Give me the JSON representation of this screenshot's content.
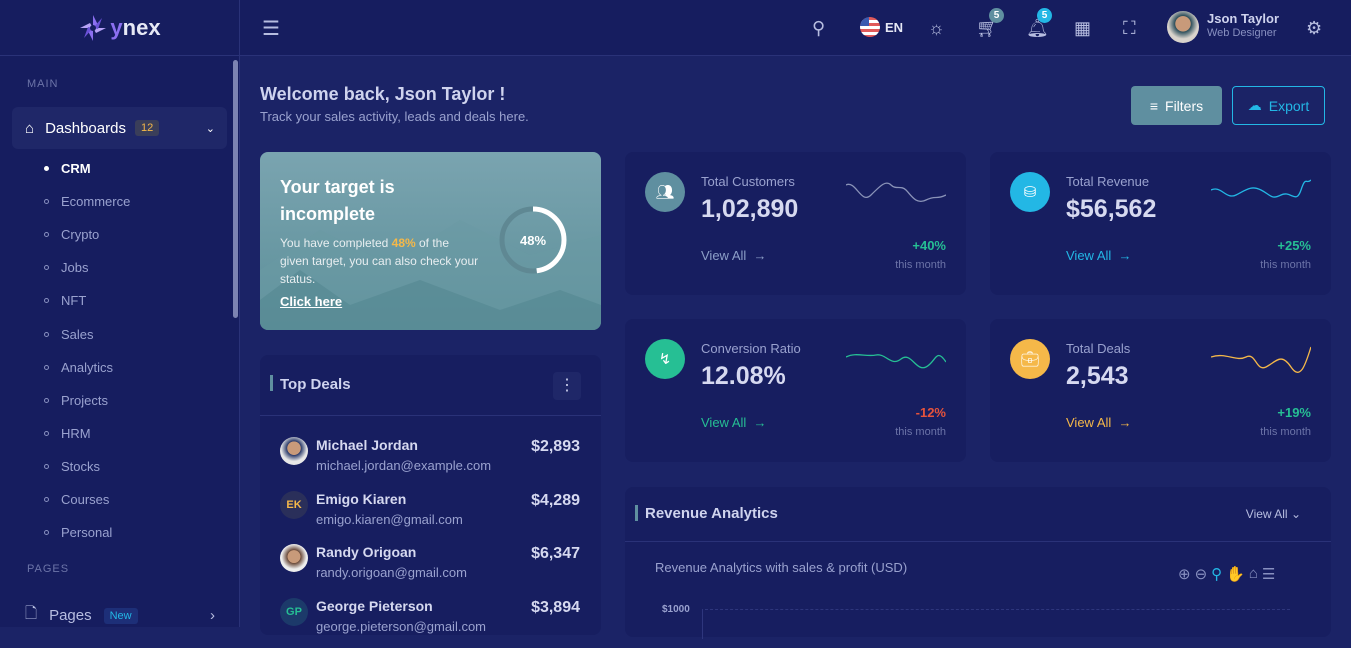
{
  "brand": {
    "name": "ynex"
  },
  "sidebar": {
    "section_main": "MAIN",
    "dashboards": {
      "label": "Dashboards",
      "badge": "12"
    },
    "items": [
      "CRM",
      "Ecommerce",
      "Crypto",
      "Jobs",
      "NFT",
      "Sales",
      "Analytics",
      "Projects",
      "HRM",
      "Stocks",
      "Courses",
      "Personal"
    ],
    "section_pages": "PAGES",
    "pages": {
      "label": "Pages",
      "badge": "New"
    }
  },
  "header": {
    "language": "EN",
    "cart_count": "5",
    "notif_count": "5",
    "user": {
      "name": "Json Taylor",
      "role": "Web Designer"
    }
  },
  "welcome": {
    "title": "Welcome back, Json Taylor !",
    "subtitle": "Track your sales activity, leads and deals here."
  },
  "actions": {
    "filters": "Filters",
    "export": "Export"
  },
  "target": {
    "title_1": "Your target is",
    "title_2": "incomplete",
    "text_before": "You have completed ",
    "percent": "48%",
    "text_after": " of the given target, you can also check your status.",
    "link": "Click here",
    "progress": 48
  },
  "stats": [
    {
      "title": "Total Customers",
      "value": "1,02,890",
      "view": "View All",
      "change": "+40%",
      "period": "this month",
      "color": "#5f8fa0",
      "line": "#8a93b8"
    },
    {
      "title": "Total Revenue",
      "value": "$56,562",
      "view": "View All",
      "change": "+25%",
      "period": "this month",
      "color": "#23b7e5",
      "line": "#23b7e5"
    },
    {
      "title": "Conversion Ratio",
      "value": "12.08%",
      "view": "View All",
      "change": "-12%",
      "period": "this month",
      "color": "#26bf94",
      "line": "#26bf94"
    },
    {
      "title": "Total Deals",
      "value": "2,543",
      "view": "View All",
      "change": "+19%",
      "period": "this month",
      "color": "#f5b849",
      "line": "#f5b849"
    }
  ],
  "top_deals": {
    "title": "Top Deals",
    "items": [
      {
        "name": "Michael Jordan",
        "email": "michael.jordan@example.com",
        "amount": "$2,893"
      },
      {
        "name": "Emigo Kiaren",
        "email": "emigo.kiaren@gmail.com",
        "amount": "$4,289",
        "initials": "EK"
      },
      {
        "name": "Randy Origoan",
        "email": "randy.origoan@gmail.com",
        "amount": "$6,347"
      },
      {
        "name": "George Pieterson",
        "email": "george.pieterson@gmail.com",
        "amount": "$3,894",
        "initials": "GP"
      }
    ]
  },
  "revenue": {
    "title": "Revenue Analytics",
    "view_all": "View All",
    "chart_title": "Revenue Analytics with sales & profit (USD)",
    "y_tick": "$1000"
  }
}
